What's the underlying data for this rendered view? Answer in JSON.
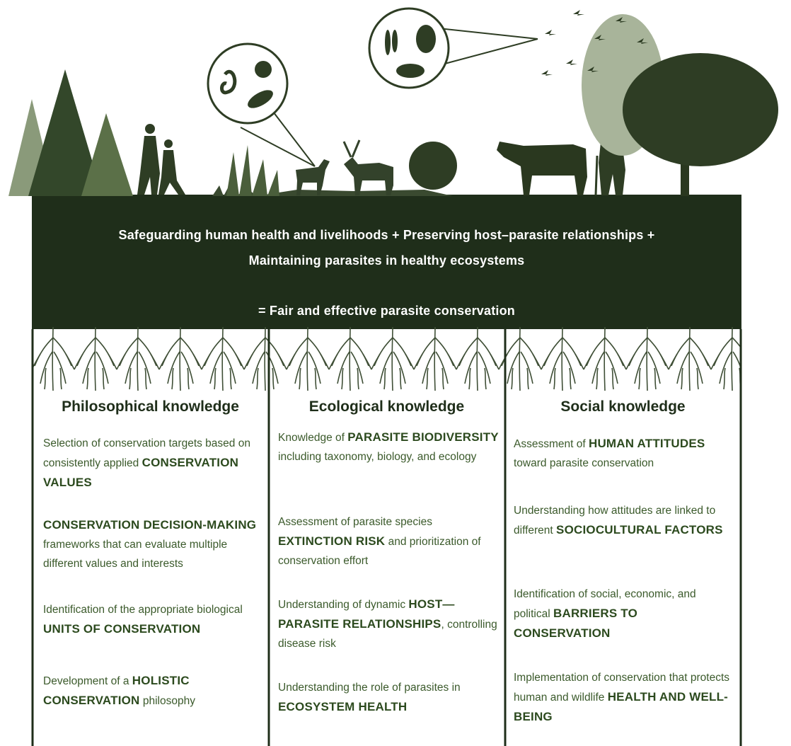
{
  "header": {
    "lines": [
      "Safeguarding human health and livelihoods + Preserving host–parasite relationships +",
      "Maintaining parasites in healthy ecosystems"
    ],
    "result": "= Fair and effective parasite conservation"
  },
  "columns": [
    {
      "title": "Philosophical knowledge",
      "items": [
        [
          {
            "plain": "Selection of conservation targets based on consistently applied "
          },
          {
            "strong": "CONSERVATION VALUES"
          }
        ],
        [
          {
            "strong": "CONSERVATION DECISION-MAKING"
          },
          {
            "plain": " frameworks that can evaluate multiple different values and interests"
          }
        ],
        [
          {
            "plain": "Identification of the appropriate biological "
          },
          {
            "strong": "UNITS OF CONSERVATION"
          }
        ],
        [
          {
            "plain": "Development of a "
          },
          {
            "strong": "HOLISTIC CONSERVATION"
          },
          {
            "plain": " philosophy"
          }
        ]
      ]
    },
    {
      "title": "Ecological knowledge",
      "items": [
        [
          {
            "plain": "Knowledge of "
          },
          {
            "strong": "PARASITE BIODIVERSITY"
          },
          {
            "plain": " including taxonomy, biology, and ecology"
          }
        ],
        [
          {
            "plain": "Assessment of parasite species "
          },
          {
            "strong": "EXTINCTION RISK"
          },
          {
            "plain": " and prioritization of conservation effort"
          }
        ],
        [
          {
            "plain": "Understanding of dynamic "
          },
          {
            "strong": "HOST—PARASITE RELATIONSHIPS"
          },
          {
            "plain": ", controlling disease risk"
          }
        ],
        [
          {
            "plain": "Understanding the role of parasites in "
          },
          {
            "strong": "ECOSYSTEM HEALTH"
          }
        ]
      ]
    },
    {
      "title": "Social knowledge",
      "items": [
        [
          {
            "plain": "Assessment of "
          },
          {
            "strong": "HUMAN ATTITUDES"
          },
          {
            "plain": " toward parasite conservation"
          }
        ],
        [
          {
            "plain": "Understanding how attitudes are linked to different "
          },
          {
            "strong": "SOCIOCULTURAL FACTORS"
          }
        ],
        [
          {
            "plain": "Identification of social, economic, and political "
          },
          {
            "strong": "BARRIERS TO CONSERVATION"
          }
        ],
        [
          {
            "plain": "Implementation of conservation that protects human and wildlife "
          },
          {
            "strong": "HEALTH AND WELL-BEING"
          }
        ]
      ]
    }
  ]
}
